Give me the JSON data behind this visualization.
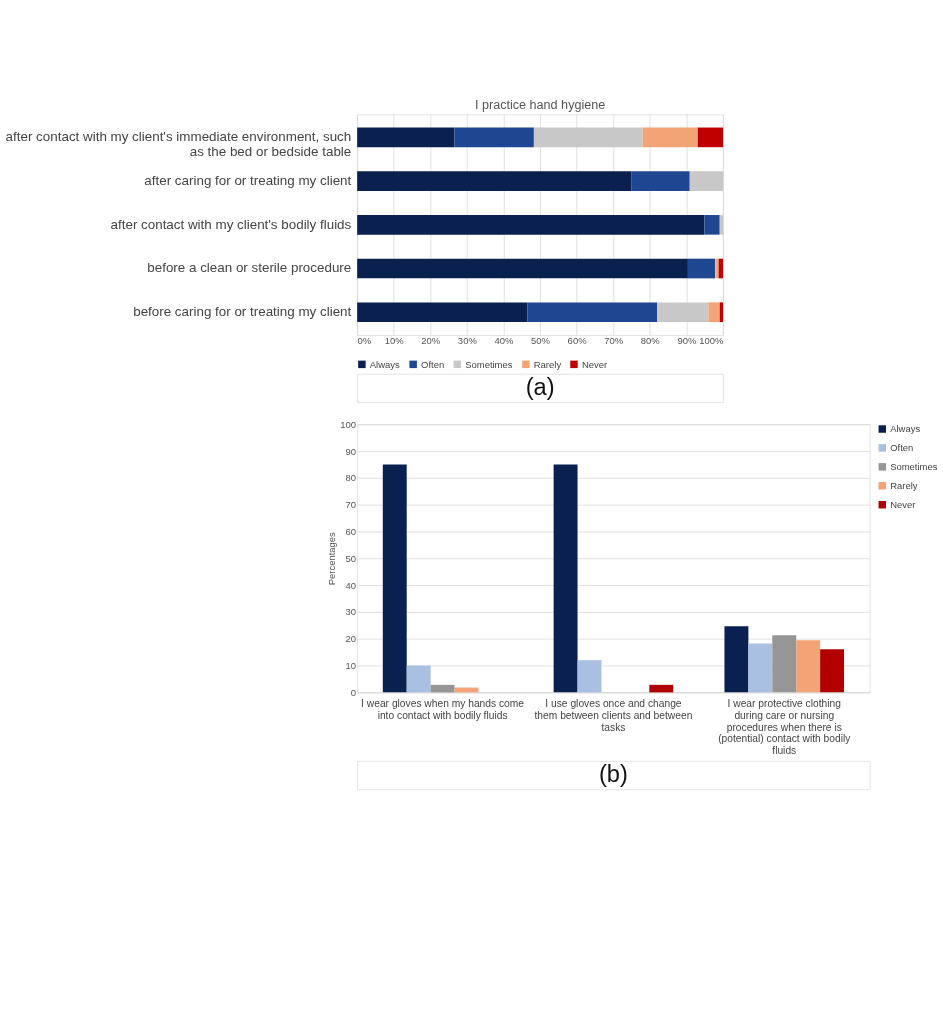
{
  "chart_data": [
    {
      "type": "bar",
      "title": "I practice hand hygiene",
      "orientation": "horizontal",
      "stacked": true,
      "categories": [
        "after contact with my client's immediate environment, such as the bed or bedside table",
        "after caring for or treating my client",
        "after contact with my client's bodily fluids",
        "before a clean or sterile procedure",
        "before caring for or treating my client"
      ],
      "series": [
        {
          "name": "Always",
          "color": "#0a2150",
          "values": [
            26.6,
            74.9,
            94.9,
            90.4,
            46.5
          ]
        },
        {
          "name": "Often",
          "color": "#1f4690",
          "values": [
            21.7,
            16.0,
            4.2,
            7.4,
            35.5
          ]
        },
        {
          "name": "Sometimes",
          "color": "#c8c8c8",
          "values": [
            29.7,
            9.1,
            0.9,
            0.3,
            14.0
          ]
        },
        {
          "name": "Rarely",
          "color": "#f2a476",
          "values": [
            15.1,
            0,
            0,
            0.7,
            3.1
          ]
        },
        {
          "name": "Never",
          "color": "#c00000",
          "values": [
            6.9,
            0,
            0,
            1.2,
            0.9
          ]
        }
      ],
      "xlim": [
        0,
        100
      ],
      "xticks": [
        {
          "value": 0,
          "label": "0%"
        },
        {
          "value": 10,
          "label": "10%"
        },
        {
          "value": 20,
          "label": "20%"
        },
        {
          "value": 30,
          "label": "30%"
        },
        {
          "value": 40,
          "label": "40%"
        },
        {
          "value": 50,
          "label": "50%"
        },
        {
          "value": 60,
          "label": "60%"
        },
        {
          "value": 70,
          "label": "70%"
        },
        {
          "value": 80,
          "label": "80%"
        },
        {
          "value": 90,
          "label": "90%"
        },
        {
          "value": 100,
          "label": "100%"
        }
      ],
      "grid": "x",
      "legend": "bottom",
      "annotations": [
        "(a)"
      ]
    },
    {
      "type": "bar",
      "ylabel": "Percentages",
      "categories": [
        "I wear gloves when my hands come into contact with bodily fluids",
        "I use gloves once and change them between clients and between tasks",
        "I wear protective clothing during care or nursing procedures when there is (potential) contact with bodily fluids"
      ],
      "series": [
        {
          "name": "Always",
          "color": "#0a2150",
          "values": [
            85,
            85,
            24.7
          ]
        },
        {
          "name": "Often",
          "color": "#a9c0e3",
          "values": [
            10,
            12,
            18.2
          ]
        },
        {
          "name": "Sometimes",
          "color": "#969696",
          "values": [
            2.8,
            0,
            21.3
          ]
        },
        {
          "name": "Rarely",
          "color": "#f2a476",
          "values": [
            1.8,
            0,
            19.4
          ]
        },
        {
          "name": "Never",
          "color": "#b00000",
          "values": [
            0,
            2.8,
            16.1
          ]
        }
      ],
      "ylim": [
        0,
        100
      ],
      "yticks": [
        0,
        10,
        20,
        30,
        40,
        50,
        60,
        70,
        80,
        90,
        100
      ],
      "grid": "y",
      "legend": "right",
      "annotations": [
        "(b)"
      ]
    }
  ]
}
